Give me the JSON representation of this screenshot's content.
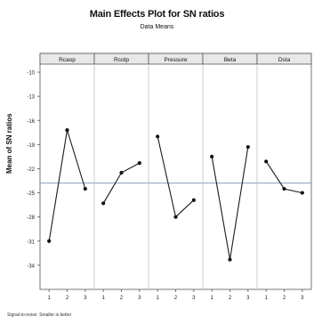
{
  "chart_data": {
    "type": "line",
    "title": "Main Effects Plot for SN ratios",
    "subtitle": "Data Means",
    "ylabel": "Mean of SN ratios",
    "xlabel": "",
    "ylim": [
      -37,
      -9
    ],
    "yticks": [
      -10,
      -13,
      -16,
      -19,
      -22,
      -25,
      -28,
      -31,
      -34
    ],
    "grand_mean": -23.8,
    "panels": [
      {
        "name": "Rcaop",
        "x": [
          "1",
          "2",
          "3"
        ],
        "values": [
          -31.0,
          -17.2,
          -24.5
        ]
      },
      {
        "name": "Rcotp",
        "x": [
          "1",
          "2",
          "3"
        ],
        "values": [
          -26.3,
          -22.5,
          -21.3
        ]
      },
      {
        "name": "Pressure",
        "x": [
          "1",
          "2",
          "3"
        ],
        "values": [
          -18.0,
          -28.0,
          -25.9
        ]
      },
      {
        "name": "Beta",
        "x": [
          "1",
          "2",
          "3"
        ],
        "values": [
          -20.5,
          -33.3,
          -19.3
        ]
      },
      {
        "name": "Dsta",
        "x": [
          "1",
          "2",
          "3"
        ],
        "values": [
          -21.1,
          -24.5,
          -25.0
        ]
      }
    ]
  },
  "footnote": "Signal-to-noise: Smaller is better",
  "colors": {
    "line": "#1a1a1a",
    "point": "#111111",
    "refline": "#7a8fb0",
    "grid": "#b8c0cc",
    "header": "#e8e8e8",
    "frame": "#555555"
  }
}
